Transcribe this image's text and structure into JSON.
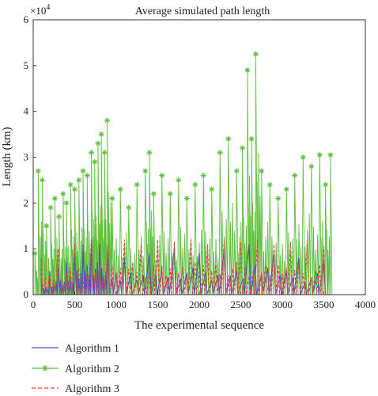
{
  "chart_data": {
    "type": "line",
    "title": "Average simulated path length",
    "xlabel": "The experimental sequence",
    "ylabel": "Length (km)",
    "xlim": [
      0,
      4000
    ],
    "ylim": [
      0,
      60000
    ],
    "x_ticks": [
      "0",
      "500",
      "1000",
      "1500",
      "2000",
      "2500",
      "3000",
      "3500",
      "4000"
    ],
    "y_ticks": [
      "0",
      "1",
      "2",
      "3",
      "4",
      "5",
      "6"
    ],
    "y_multiplier_base": "×10",
    "y_multiplier_exp": "4",
    "grid": false,
    "legend_position": "bottom",
    "series": [
      {
        "name": "Algorithm 1",
        "color": "#4b4fc4",
        "style": "solid",
        "marker": "none",
        "peaks": [
          {
            "x": 100,
            "y": 3000
          },
          {
            "x": 200,
            "y": 5000
          },
          {
            "x": 300,
            "y": 6000
          },
          {
            "x": 400,
            "y": 7000
          },
          {
            "x": 500,
            "y": 9000
          },
          {
            "x": 600,
            "y": 11000
          },
          {
            "x": 700,
            "y": 12000
          },
          {
            "x": 800,
            "y": 11000
          },
          {
            "x": 900,
            "y": 9000
          },
          {
            "x": 1100,
            "y": 8000
          },
          {
            "x": 1400,
            "y": 9000
          },
          {
            "x": 1700,
            "y": 10000
          },
          {
            "x": 2000,
            "y": 9000
          },
          {
            "x": 2300,
            "y": 10000
          },
          {
            "x": 2600,
            "y": 11000
          },
          {
            "x": 2900,
            "y": 9000
          },
          {
            "x": 3200,
            "y": 8000
          },
          {
            "x": 3500,
            "y": 7000
          }
        ]
      },
      {
        "name": "Algorithm 2",
        "color": "#5fbf3f",
        "style": "solid",
        "marker": "asterisk",
        "peaks": [
          {
            "x": 20,
            "y": 9000
          },
          {
            "x": 60,
            "y": 27000
          },
          {
            "x": 110,
            "y": 25000
          },
          {
            "x": 160,
            "y": 15000
          },
          {
            "x": 210,
            "y": 19000
          },
          {
            "x": 260,
            "y": 21000
          },
          {
            "x": 310,
            "y": 17000
          },
          {
            "x": 360,
            "y": 22000
          },
          {
            "x": 400,
            "y": 20000
          },
          {
            "x": 450,
            "y": 24000
          },
          {
            "x": 500,
            "y": 23000
          },
          {
            "x": 550,
            "y": 25000
          },
          {
            "x": 600,
            "y": 27000
          },
          {
            "x": 650,
            "y": 26000
          },
          {
            "x": 700,
            "y": 31000
          },
          {
            "x": 740,
            "y": 29000
          },
          {
            "x": 780,
            "y": 33000
          },
          {
            "x": 820,
            "y": 35000
          },
          {
            "x": 860,
            "y": 31000
          },
          {
            "x": 890,
            "y": 38000
          },
          {
            "x": 950,
            "y": 21000
          },
          {
            "x": 1050,
            "y": 23000
          },
          {
            "x": 1150,
            "y": 19000
          },
          {
            "x": 1250,
            "y": 24000
          },
          {
            "x": 1350,
            "y": 27000
          },
          {
            "x": 1400,
            "y": 31000
          },
          {
            "x": 1450,
            "y": 22000
          },
          {
            "x": 1550,
            "y": 26000
          },
          {
            "x": 1650,
            "y": 22000
          },
          {
            "x": 1750,
            "y": 25000
          },
          {
            "x": 1850,
            "y": 21000
          },
          {
            "x": 1950,
            "y": 24000
          },
          {
            "x": 2050,
            "y": 26000
          },
          {
            "x": 2150,
            "y": 23000
          },
          {
            "x": 2250,
            "y": 31000
          },
          {
            "x": 2350,
            "y": 34000
          },
          {
            "x": 2450,
            "y": 27000
          },
          {
            "x": 2520,
            "y": 32000
          },
          {
            "x": 2580,
            "y": 49000
          },
          {
            "x": 2630,
            "y": 34000
          },
          {
            "x": 2680,
            "y": 52500
          },
          {
            "x": 2750,
            "y": 27000
          },
          {
            "x": 2850,
            "y": 24000
          },
          {
            "x": 2950,
            "y": 21000
          },
          {
            "x": 3050,
            "y": 23000
          },
          {
            "x": 3150,
            "y": 26000
          },
          {
            "x": 3250,
            "y": 30000
          },
          {
            "x": 3350,
            "y": 28000
          },
          {
            "x": 3450,
            "y": 30500
          },
          {
            "x": 3520,
            "y": 24000
          },
          {
            "x": 3580,
            "y": 30500
          }
        ]
      },
      {
        "name": "Algorithm 3",
        "color": "#e0463b",
        "style": "dashed",
        "marker": "none",
        "peaks": [
          {
            "x": 100,
            "y": 8000
          },
          {
            "x": 300,
            "y": 10000
          },
          {
            "x": 500,
            "y": 11000
          },
          {
            "x": 700,
            "y": 12000
          },
          {
            "x": 900,
            "y": 11000
          },
          {
            "x": 1100,
            "y": 12000
          },
          {
            "x": 1300,
            "y": 11000
          },
          {
            "x": 1500,
            "y": 12000
          },
          {
            "x": 1700,
            "y": 11500
          },
          {
            "x": 1900,
            "y": 12000
          },
          {
            "x": 2100,
            "y": 11000
          },
          {
            "x": 2300,
            "y": 12000
          },
          {
            "x": 2500,
            "y": 11500
          },
          {
            "x": 2700,
            "y": 12000
          },
          {
            "x": 2900,
            "y": 11000
          },
          {
            "x": 3100,
            "y": 11500
          },
          {
            "x": 3300,
            "y": 11000
          },
          {
            "x": 3500,
            "y": 10000
          }
        ]
      }
    ]
  }
}
